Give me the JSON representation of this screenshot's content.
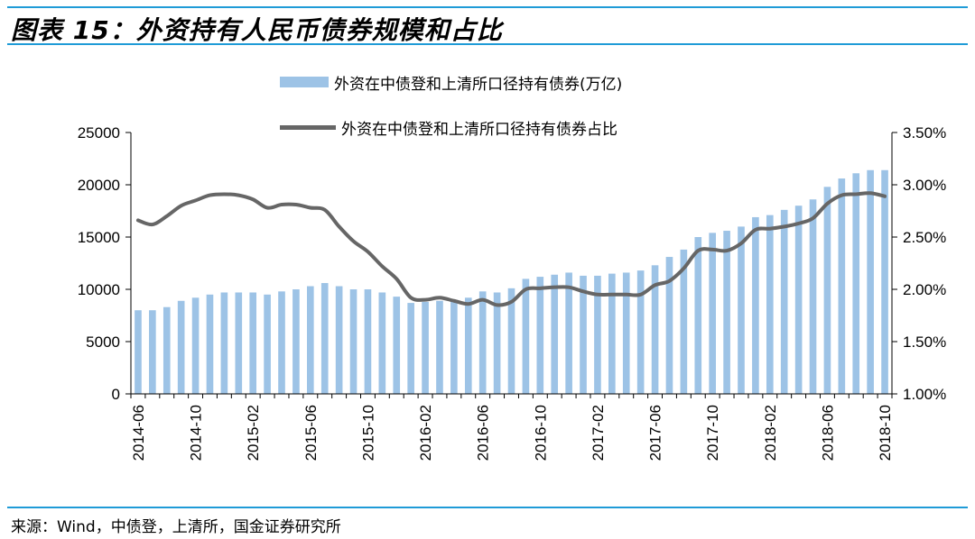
{
  "figure_title": "图表 15：外资持有人民币债券规模和占比",
  "source": "来源：Wind，中债登，上清所，国金证券研究所",
  "legend": {
    "bar_label": "外资在中债登和上清所口径持有债券(万亿)",
    "line_label": "外资在中债登和上清所口径持有债券占比"
  },
  "colors": {
    "bar": "#9dc3e6",
    "line": "#666666",
    "accent": "#1f9bd7"
  },
  "chart_data": {
    "type": "bar",
    "categories": [
      "2014-06",
      "2014-07",
      "2014-08",
      "2014-09",
      "2014-10",
      "2014-11",
      "2014-12",
      "2015-01",
      "2015-02",
      "2015-03",
      "2015-04",
      "2015-05",
      "2015-06",
      "2015-07",
      "2015-08",
      "2015-09",
      "2015-10",
      "2015-11",
      "2015-12",
      "2016-01",
      "2016-02",
      "2016-03",
      "2016-04",
      "2016-05",
      "2016-06",
      "2016-07",
      "2016-08",
      "2016-09",
      "2016-10",
      "2016-11",
      "2016-12",
      "2017-01",
      "2017-02",
      "2017-03",
      "2017-04",
      "2017-05",
      "2017-06",
      "2017-07",
      "2017-08",
      "2017-09",
      "2017-10",
      "2017-11",
      "2017-12",
      "2018-01",
      "2018-02",
      "2018-03",
      "2018-04",
      "2018-05",
      "2018-06",
      "2018-07",
      "2018-08",
      "2018-09",
      "2018-10"
    ],
    "x_tick_labels": [
      "2014-06",
      "2014-10",
      "2015-02",
      "2015-06",
      "2015-10",
      "2016-02",
      "2016-06",
      "2016-10",
      "2017-02",
      "2017-06",
      "2017-10",
      "2018-02",
      "2018-06",
      "2018-10"
    ],
    "series": [
      {
        "name": "外资在中债登和上清所口径持有债券(万亿)",
        "type": "bar",
        "axis": "left",
        "values": [
          8000,
          8000,
          8300,
          8900,
          9200,
          9500,
          9700,
          9700,
          9700,
          9500,
          9800,
          10000,
          10300,
          10600,
          10300,
          10000,
          10000,
          9700,
          9300,
          8700,
          8800,
          8900,
          9000,
          9200,
          9800,
          9700,
          10100,
          11000,
          11200,
          11400,
          11600,
          11300,
          11300,
          11500,
          11600,
          11800,
          12300,
          13100,
          13800,
          15000,
          15400,
          15600,
          16000,
          16900,
          17100,
          17600,
          18000,
          18600,
          19800,
          20600,
          21100,
          21400,
          21400
        ]
      },
      {
        "name": "外资在中债登和上清所口径持有债券占比",
        "type": "line",
        "axis": "right",
        "values": [
          2.66,
          2.62,
          2.7,
          2.8,
          2.85,
          2.9,
          2.91,
          2.9,
          2.86,
          2.78,
          2.81,
          2.81,
          2.78,
          2.76,
          2.6,
          2.46,
          2.36,
          2.22,
          2.1,
          1.92,
          1.9,
          1.92,
          1.89,
          1.86,
          1.9,
          1.85,
          1.88,
          2.0,
          2.01,
          2.02,
          2.02,
          1.98,
          1.95,
          1.95,
          1.95,
          1.95,
          2.04,
          2.08,
          2.2,
          2.37,
          2.38,
          2.37,
          2.44,
          2.57,
          2.58,
          2.6,
          2.63,
          2.68,
          2.82,
          2.9,
          2.91,
          2.92,
          2.89
        ]
      }
    ],
    "left_axis": {
      "ylim": [
        0,
        25000
      ],
      "ticks": [
        "0",
        "5000",
        "10000",
        "15000",
        "20000",
        "25000"
      ]
    },
    "right_axis": {
      "ylim": [
        1.0,
        3.5
      ],
      "ticks": [
        "1.00%",
        "1.50%",
        "2.00%",
        "2.50%",
        "3.00%",
        "3.50%"
      ]
    },
    "grid": false,
    "legend_position": "top-center"
  }
}
